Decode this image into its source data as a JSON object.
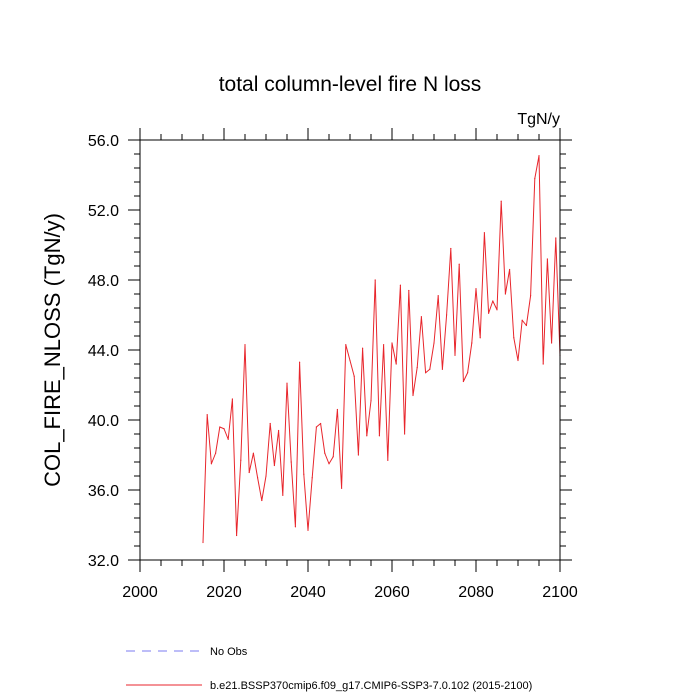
{
  "chart_data": {
    "type": "line",
    "title": "total column-level fire N loss",
    "units_label": "TgN/y",
    "ylabel": "COL_FIRE_NLOSS  (TgN/y)",
    "xlabel": "",
    "xlim": [
      2000,
      2100
    ],
    "ylim": [
      32.0,
      56.0
    ],
    "x_ticks": [
      2000,
      2020,
      2040,
      2060,
      2080,
      2100
    ],
    "x_tick_labels": [
      "2000",
      "2020",
      "2040",
      "2060",
      "2080",
      "2100"
    ],
    "y_ticks": [
      32.0,
      36.0,
      40.0,
      44.0,
      48.0,
      52.0,
      56.0
    ],
    "y_tick_labels": [
      "32.0",
      "36.0",
      "40.0",
      "44.0",
      "48.0",
      "52.0",
      "56.0"
    ],
    "grid": false,
    "legend_position": "bottom",
    "series": [
      {
        "name": "No Obs",
        "color": "#7b7bf0",
        "style": "dashed",
        "x": [],
        "y": []
      },
      {
        "name": "b.e21.BSSP370cmip6.f09_g17.CMIP6-SSP3-7.0.102 (2015-2100)",
        "color": "#e8262c",
        "style": "solid",
        "x": [
          2015,
          2016,
          2017,
          2018,
          2019,
          2020,
          2021,
          2022,
          2023,
          2024,
          2025,
          2026,
          2027,
          2028,
          2029,
          2030,
          2031,
          2032,
          2033,
          2034,
          2035,
          2036,
          2037,
          2038,
          2039,
          2040,
          2041,
          2042,
          2043,
          2044,
          2045,
          2046,
          2047,
          2048,
          2049,
          2050,
          2051,
          2052,
          2053,
          2054,
          2055,
          2056,
          2057,
          2058,
          2059,
          2060,
          2061,
          2062,
          2063,
          2064,
          2065,
          2066,
          2067,
          2068,
          2069,
          2070,
          2071,
          2072,
          2073,
          2074,
          2075,
          2076,
          2077,
          2078,
          2079,
          2080,
          2081,
          2082,
          2083,
          2084,
          2085,
          2086,
          2087,
          2088,
          2089,
          2090,
          2091,
          2092,
          2093,
          2094,
          2095,
          2096,
          2097,
          2098,
          2099,
          2100
        ],
        "y": [
          33.0,
          40.3,
          37.5,
          38.1,
          39.6,
          39.5,
          38.9,
          41.2,
          33.4,
          37.7,
          44.3,
          37.0,
          38.1,
          36.7,
          35.4,
          36.8,
          39.8,
          37.4,
          39.4,
          35.7,
          42.1,
          37.6,
          33.9,
          43.3,
          36.9,
          33.7,
          36.7,
          39.6,
          39.8,
          38.1,
          37.5,
          37.9,
          40.6,
          36.1,
          44.3,
          43.4,
          42.5,
          38.0,
          44.1,
          39.1,
          41.1,
          48.0,
          39.1,
          44.3,
          37.7,
          44.4,
          43.2,
          47.7,
          39.2,
          47.4,
          41.4,
          43.0,
          45.9,
          42.7,
          42.9,
          44.4,
          47.1,
          42.9,
          46.0,
          49.8,
          43.7,
          48.9,
          42.2,
          42.7,
          44.4,
          47.5,
          44.7,
          50.7,
          46.1,
          46.8,
          46.3,
          52.5,
          47.2,
          48.6,
          44.7,
          43.4,
          45.7,
          45.4,
          47.1,
          53.8,
          55.1,
          43.2,
          49.2,
          44.4,
          50.4,
          43.7
        ]
      }
    ]
  }
}
